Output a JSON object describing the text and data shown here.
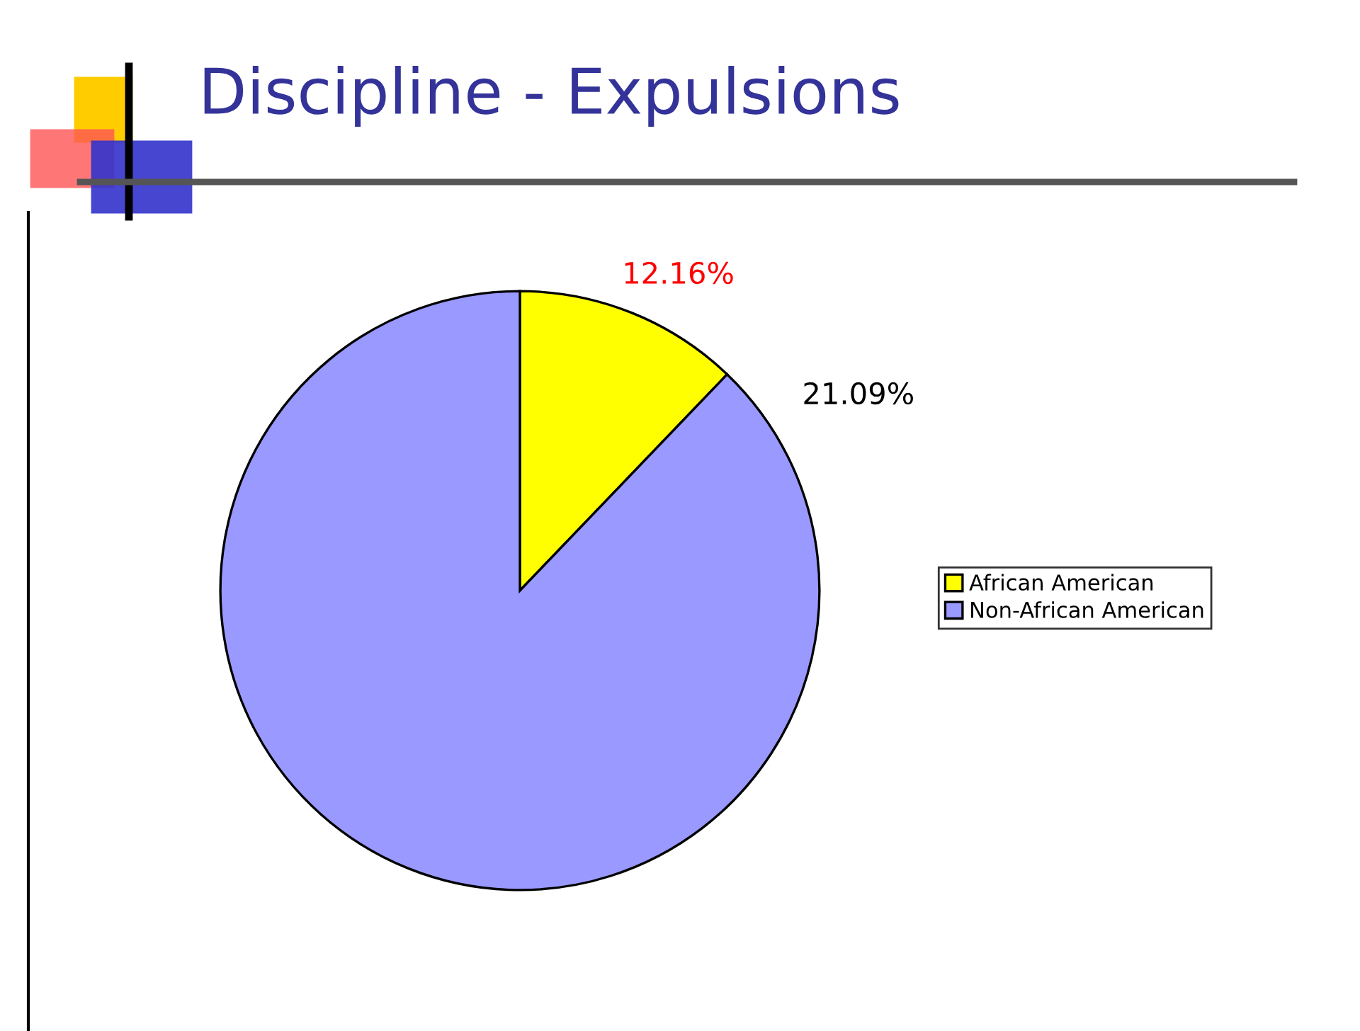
{
  "chart_data": {
    "type": "pie",
    "title": "Discipline - Expulsions",
    "categories": [
      "African American",
      "Non-African American"
    ],
    "values": [
      12.16,
      87.84
    ],
    "colors": [
      "#ffff00",
      "#9999ff"
    ],
    "value_labels": [
      "12.16%",
      null
    ],
    "annotations": [
      "21.09%"
    ],
    "legend": "right"
  }
}
